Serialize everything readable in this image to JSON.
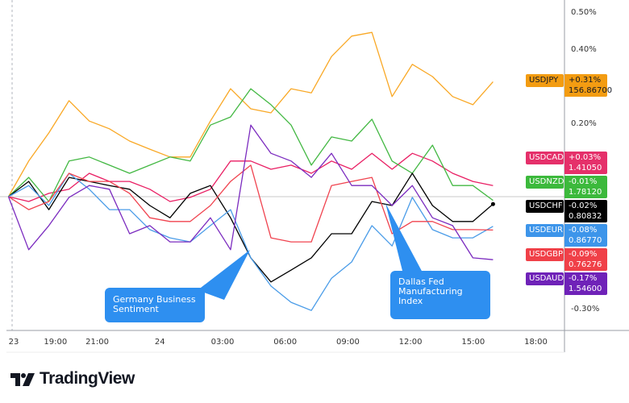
{
  "chart_data": {
    "type": "line",
    "title": "",
    "xlabel": "",
    "ylabel": "",
    "y_unit": "%",
    "ylim": [
      -0.36,
      0.53
    ],
    "grid": false,
    "x_ticks": [
      "23",
      "19:00",
      "21:00",
      "24",
      "03:00",
      "06:00",
      "09:00",
      "12:00",
      "15:00",
      "18:00"
    ],
    "x_tick_times": [
      "23 17:00",
      "23 19:00",
      "23 21:00",
      "24 00:00",
      "24 03:00",
      "24 06:00",
      "24 09:00",
      "24 12:00",
      "24 15:00",
      "24 18:00"
    ],
    "y_ticks": [
      {
        "value": 0.5,
        "label": "0.50%"
      },
      {
        "value": 0.4,
        "label": "0.40%"
      },
      {
        "value": 0.2,
        "label": "0.20%"
      },
      {
        "value": -0.3,
        "label": "-0.30%"
      }
    ],
    "x": [
      "23 16:45",
      "23 17:43",
      "23 18:41",
      "23 19:39",
      "23 20:37",
      "23 21:35",
      "23 22:33",
      "23 23:31",
      "24 00:29",
      "24 01:27",
      "24 02:25",
      "24 03:23",
      "24 04:21",
      "24 05:19",
      "24 06:17",
      "24 07:15",
      "24 08:13",
      "24 09:11",
      "24 10:09",
      "24 11:07",
      "24 12:05",
      "24 13:03",
      "24 14:01",
      "24 14:59",
      "24 15:57"
    ],
    "series": [
      {
        "name": "USDJPY",
        "change": "+0.31%",
        "price": "156.86700",
        "color": "#f9a825",
        "tag_color": "#f39c12",
        "tag_text": "#131722",
        "values": [
          0,
          0.096,
          0.172,
          0.259,
          0.204,
          0.183,
          0.15,
          0.128,
          0.107,
          0.107,
          0.204,
          0.291,
          0.237,
          0.226,
          0.291,
          0.28,
          0.378,
          0.433,
          0.443,
          0.27,
          0.357,
          0.324,
          0.27,
          0.248,
          0.31
        ]
      },
      {
        "name": "USDCAD",
        "change": "+0.03%",
        "price": "1.41050",
        "color": "#e91e63",
        "tag_color": "#e5306a",
        "tag_text": "#ffffff",
        "values": [
          0,
          -0.013,
          0.009,
          0.02,
          0.063,
          0.041,
          0.041,
          0.02,
          -0.013,
          -0.002,
          0.02,
          0.096,
          0.096,
          0.074,
          0.085,
          0.063,
          0.096,
          0.074,
          0.117,
          0.074,
          0.117,
          0.096,
          0.063,
          0.041,
          0.03
        ]
      },
      {
        "name": "USDNZD",
        "change": "-0.01%",
        "price": "1.78120",
        "color": "#43b843",
        "tag_color": "#3cb93c",
        "tag_text": "#ffffff",
        "values": [
          0,
          0.052,
          -0.013,
          0.096,
          0.107,
          0.085,
          0.063,
          0.085,
          0.107,
          0.096,
          0.193,
          0.215,
          0.291,
          0.248,
          0.193,
          0.085,
          0.161,
          0.15,
          0.209,
          0.096,
          0.063,
          0.139,
          0.03,
          0.03,
          -0.01
        ]
      },
      {
        "name": "USDCHF",
        "change": "-0.02%",
        "price": "0.80832",
        "color": "#000000",
        "tag_color": "#000000",
        "tag_text": "#ffffff",
        "values": [
          0,
          0.041,
          -0.035,
          0.052,
          0.041,
          0.03,
          0.02,
          -0.024,
          -0.057,
          0.009,
          0.03,
          -0.057,
          -0.165,
          -0.23,
          -0.198,
          -0.165,
          -0.1,
          -0.1,
          -0.013,
          -0.024,
          0.063,
          -0.024,
          -0.067,
          -0.067,
          -0.02
        ]
      },
      {
        "name": "USDEUR",
        "change": "-0.08%",
        "price": "0.86770",
        "color": "#4a9ce8",
        "tag_color": "#3d95ea",
        "tag_text": "#ffffff",
        "values": [
          0,
          0.03,
          -0.024,
          0.063,
          0.02,
          -0.035,
          -0.035,
          -0.089,
          -0.111,
          -0.122,
          -0.078,
          -0.035,
          -0.165,
          -0.241,
          -0.285,
          -0.307,
          -0.22,
          -0.176,
          -0.078,
          -0.133,
          -0.002,
          -0.089,
          -0.111,
          -0.111,
          -0.08
        ]
      },
      {
        "name": "USDGBP",
        "change": "-0.09%",
        "price": "0.76276",
        "color": "#f0434f",
        "tag_color": "#f04048",
        "tag_text": "#ffffff",
        "values": [
          0,
          -0.035,
          -0.013,
          0.063,
          0.041,
          0.041,
          0.009,
          -0.057,
          -0.067,
          -0.067,
          -0.024,
          0.041,
          0.085,
          -0.111,
          -0.122,
          -0.122,
          0.03,
          0.041,
          0.052,
          -0.1,
          -0.067,
          -0.067,
          -0.089,
          -0.089,
          -0.09
        ]
      },
      {
        "name": "USDAUD",
        "change": "-0.17%",
        "price": "1.54600",
        "color": "#7b2bbf",
        "tag_color": "#6f22b8",
        "tag_text": "#ffffff",
        "values": [
          0,
          -0.143,
          -0.078,
          -0.002,
          0.03,
          0.02,
          -0.1,
          -0.078,
          -0.122,
          -0.122,
          -0.057,
          -0.143,
          0.193,
          0.117,
          0.096,
          0.052,
          0.117,
          0.03,
          0.03,
          -0.024,
          0.03,
          -0.057,
          -0.078,
          -0.165,
          -0.17
        ]
      }
    ],
    "annotations": [
      {
        "text": "Germany Business Sentiment",
        "time": "24 04:15"
      },
      {
        "text": "Dallas Fed Manufacturing Index",
        "time": "24 10:10"
      }
    ]
  },
  "branding": {
    "logo_text": "TradingView"
  }
}
